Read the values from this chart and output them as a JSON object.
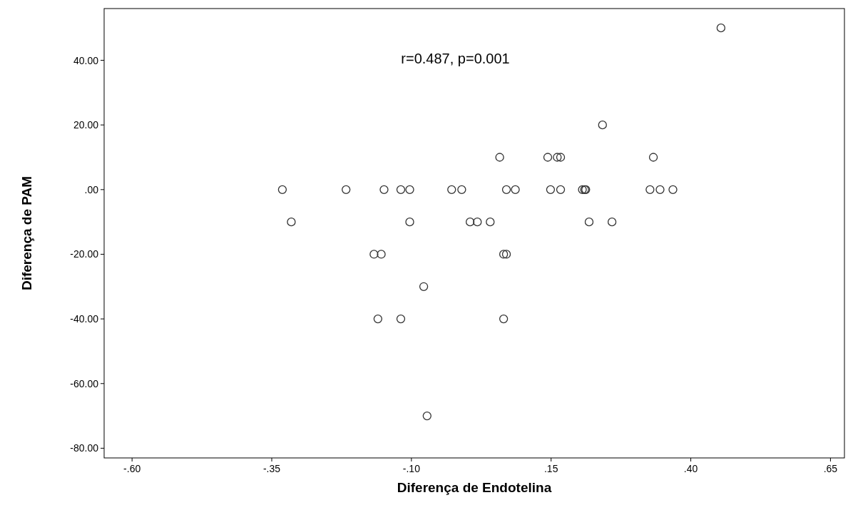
{
  "chart_data": {
    "type": "scatter",
    "xlabel": "Diferença de Endotelina",
    "ylabel": "Diferença de PAM",
    "annotations": [
      "r=0.487, p=0.001"
    ],
    "marker": "circle",
    "grid": false,
    "x": [
      0.454,
      0.242,
      0.058,
      0.144,
      0.161,
      0.167,
      0.333,
      -0.331,
      -0.217,
      -0.149,
      -0.119,
      -0.103,
      -0.028,
      -0.01,
      0.07,
      0.086,
      0.149,
      0.167,
      0.206,
      0.21,
      0.212,
      0.327,
      0.345,
      0.368,
      -0.315,
      -0.103,
      0.005,
      0.018,
      0.041,
      0.218,
      0.259,
      -0.167,
      -0.154,
      0.065,
      0.07,
      -0.078,
      -0.16,
      -0.119,
      0.065,
      -0.072
    ],
    "values": [
      50,
      20,
      10,
      10,
      10,
      10,
      10,
      0,
      0,
      0,
      0,
      0,
      0,
      0,
      0,
      0,
      0,
      0,
      0,
      0,
      0,
      0,
      0,
      0,
      -10,
      -10,
      -10,
      -10,
      -10,
      -10,
      -10,
      -20,
      -20,
      -20,
      -20,
      -30,
      -40,
      -40,
      -40,
      -70
    ],
    "color": "#333333",
    "xlim": [
      -0.65,
      0.675
    ],
    "ylim": [
      -83,
      56
    ],
    "xticks": [
      {
        "value": -0.6,
        "label": "-.60"
      },
      {
        "value": -0.35,
        "label": "-.35"
      },
      {
        "value": -0.1,
        "label": "-.10"
      },
      {
        "value": 0.15,
        "label": ".15"
      },
      {
        "value": 0.4,
        "label": ".40"
      },
      {
        "value": 0.65,
        "label": ".65"
      }
    ],
    "yticks": [
      {
        "value": -80,
        "label": "-80.00"
      },
      {
        "value": -60,
        "label": "-60.00"
      },
      {
        "value": -40,
        "label": "-40.00"
      },
      {
        "value": -20,
        "label": "-20.00"
      },
      {
        "value": 0,
        "label": ".00"
      },
      {
        "value": 20,
        "label": "20.00"
      },
      {
        "value": 40,
        "label": "40.00"
      }
    ]
  }
}
